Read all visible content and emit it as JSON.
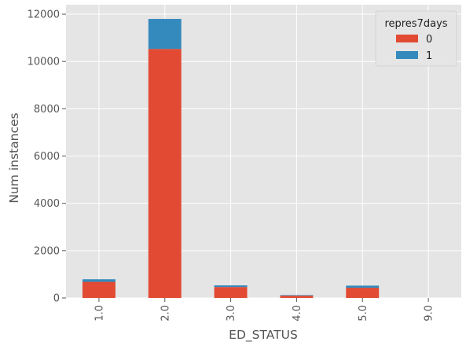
{
  "chart_data": {
    "type": "bar",
    "stacked": true,
    "categories": [
      "1.0",
      "2.0",
      "3.0",
      "4.0",
      "5.0",
      "9.0"
    ],
    "series": [
      {
        "name": "0",
        "color": "#e24a33",
        "values": [
          680,
          10530,
          460,
          95,
          430,
          0
        ]
      },
      {
        "name": "1",
        "color": "#348abd",
        "values": [
          110,
          1270,
          70,
          25,
          90,
          0
        ]
      }
    ],
    "xlabel": "ED_STATUS",
    "ylabel": "Num instances",
    "ylim": [
      0,
      12400
    ],
    "yticks": [
      0,
      2000,
      4000,
      6000,
      8000,
      10000,
      12000
    ],
    "grid": true,
    "legend": {
      "title": "repres7days",
      "placement": "top-right"
    },
    "background": "#e5e5e5",
    "grid_color": "#ffffff"
  }
}
